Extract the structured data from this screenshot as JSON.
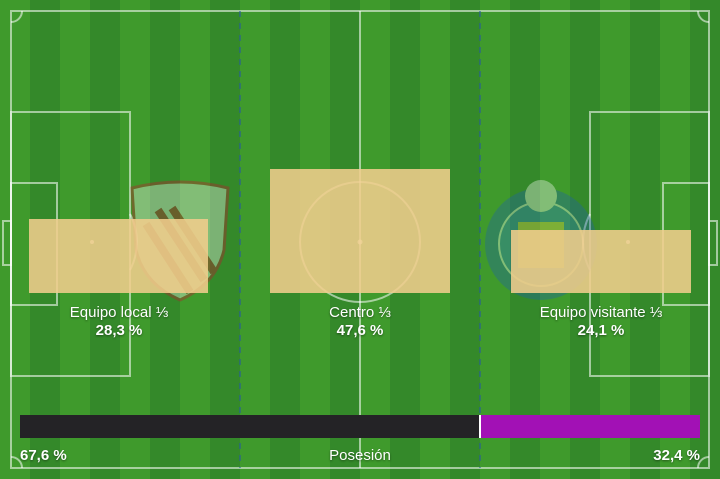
{
  "zones": {
    "home": {
      "label": "Equipo local ⅓",
      "value": "28,3 %",
      "share": 28.3
    },
    "center": {
      "label": "Centro ⅓",
      "value": "47,6 %",
      "share": 47.6
    },
    "away": {
      "label": "Equipo visitante ⅓",
      "value": "24,1 %",
      "share": 24.1
    }
  },
  "possession": {
    "label": "Posesión",
    "home_value": "67,6 %",
    "away_value": "32,4 %",
    "home_share": 67.6,
    "away_share": 32.4
  },
  "colors": {
    "bar_fill": "#f0cd8c",
    "home_possession": "#242326",
    "away_possession": "#a211b5",
    "pitch_light": "#3f9a2c",
    "pitch_dark": "#34892a"
  },
  "icons": {
    "home_crest": "home-team-crest-icon",
    "away_crest": "away-team-crest-icon"
  }
}
